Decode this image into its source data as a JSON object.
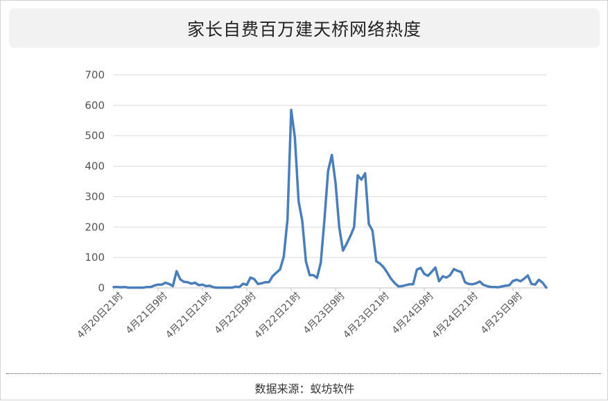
{
  "chart_data": {
    "type": "line",
    "title": "家长自费百万建天桥网络热度",
    "source": "数据来源：蚁坊软件",
    "xlabel": "",
    "ylabel": "",
    "ylim": [
      0,
      700
    ],
    "yticks": [
      0,
      100,
      200,
      300,
      400,
      500,
      600,
      700
    ],
    "grid": true,
    "legend": "none",
    "line_color": "#4a7ebb",
    "x_tick_labels": [
      {
        "index": 0,
        "label": "4月20日21时"
      },
      {
        "index": 12,
        "label": "4月21日9时"
      },
      {
        "index": 24,
        "label": "4月21日21时"
      },
      {
        "index": 36,
        "label": "4月22日9时"
      },
      {
        "index": 48,
        "label": "4月22日21时"
      },
      {
        "index": 60,
        "label": "4月23日9时"
      },
      {
        "index": 72,
        "label": "4月23日21时"
      },
      {
        "index": 84,
        "label": "4月24日9时"
      },
      {
        "index": 96,
        "label": "4月24日21时"
      },
      {
        "index": 108,
        "label": "4月25日9时"
      }
    ],
    "values": [
      3,
      3,
      2,
      3,
      1,
      1,
      1,
      1,
      1,
      3,
      3,
      8,
      11,
      11,
      17,
      13,
      6,
      55,
      28,
      20,
      19,
      14,
      17,
      9,
      11,
      6,
      7,
      2,
      1,
      1,
      1,
      1,
      1,
      4,
      3,
      14,
      10,
      34,
      29,
      13,
      15,
      19,
      19,
      39,
      50,
      61,
      103,
      225,
      585,
      495,
      285,
      220,
      87,
      42,
      42,
      33,
      83,
      225,
      385,
      437,
      345,
      200,
      123,
      145,
      170,
      199,
      370,
      356,
      377,
      210,
      188,
      88,
      80,
      68,
      50,
      30,
      16,
      5,
      6,
      9,
      12,
      12,
      60,
      66,
      46,
      40,
      53,
      67,
      22,
      38,
      34,
      42,
      62,
      56,
      52,
      19,
      13,
      12,
      15,
      21,
      10,
      6,
      3,
      3,
      2,
      5,
      7,
      9,
      23,
      27,
      22,
      30,
      41,
      13,
      11,
      27,
      17,
      1
    ]
  }
}
